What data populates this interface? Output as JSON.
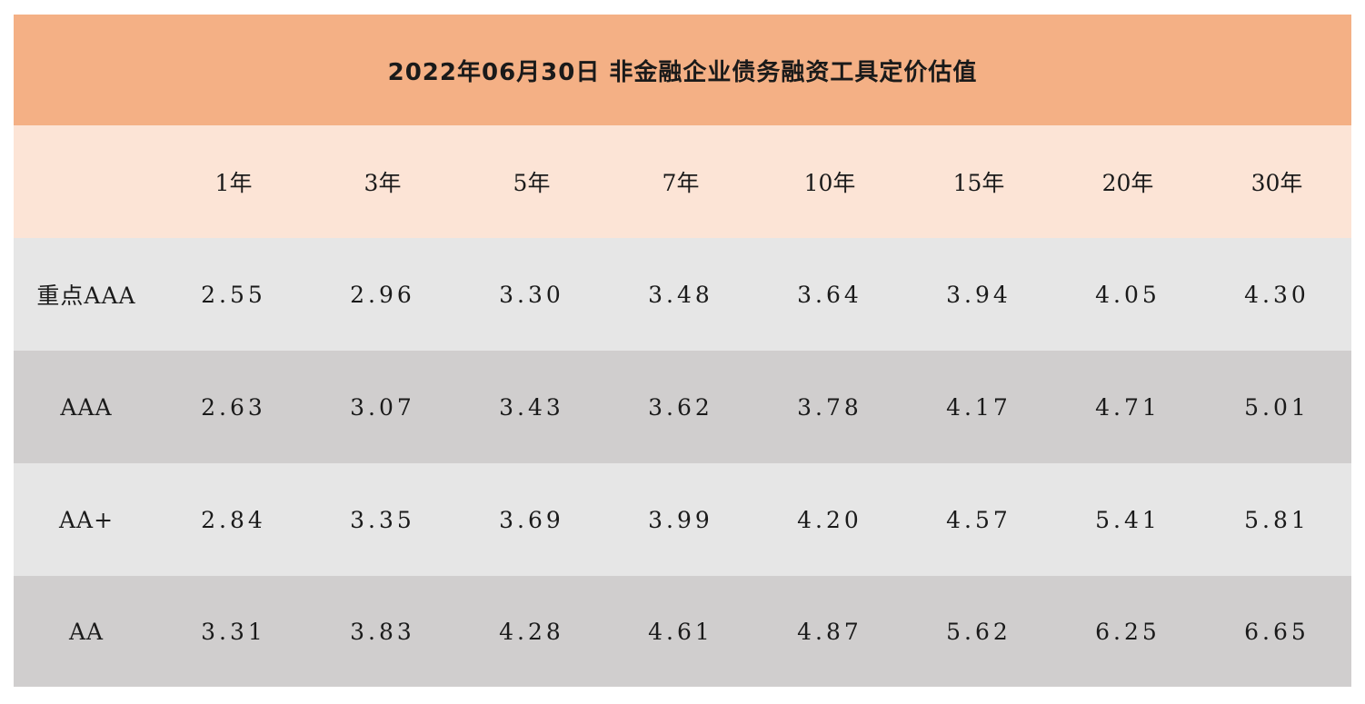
{
  "title": "2022年06月30日  非金融企业债务融资工具定价估值",
  "header": {
    "corner": "",
    "tenors": [
      "1年",
      "3年",
      "5年",
      "7年",
      "10年",
      "15年",
      "20年",
      "30年"
    ]
  },
  "rows": [
    {
      "rating": "重点AAA",
      "values": [
        "2.55",
        "2.96",
        "3.30",
        "3.48",
        "3.64",
        "3.94",
        "4.05",
        "4.30"
      ]
    },
    {
      "rating": "AAA",
      "values": [
        "2.63",
        "3.07",
        "3.43",
        "3.62",
        "3.78",
        "4.17",
        "4.71",
        "5.01"
      ]
    },
    {
      "rating": "AA+",
      "values": [
        "2.84",
        "3.35",
        "3.69",
        "3.99",
        "4.20",
        "4.57",
        "5.41",
        "5.81"
      ]
    },
    {
      "rating": "AA",
      "values": [
        "3.31",
        "3.83",
        "4.28",
        "4.61",
        "4.87",
        "5.62",
        "6.25",
        "6.65"
      ]
    }
  ],
  "colors": {
    "title_bg": "#f4b085",
    "header_bg": "#fce4d6",
    "row_light": "#e6e6e6",
    "row_dark": "#d0cece"
  }
}
